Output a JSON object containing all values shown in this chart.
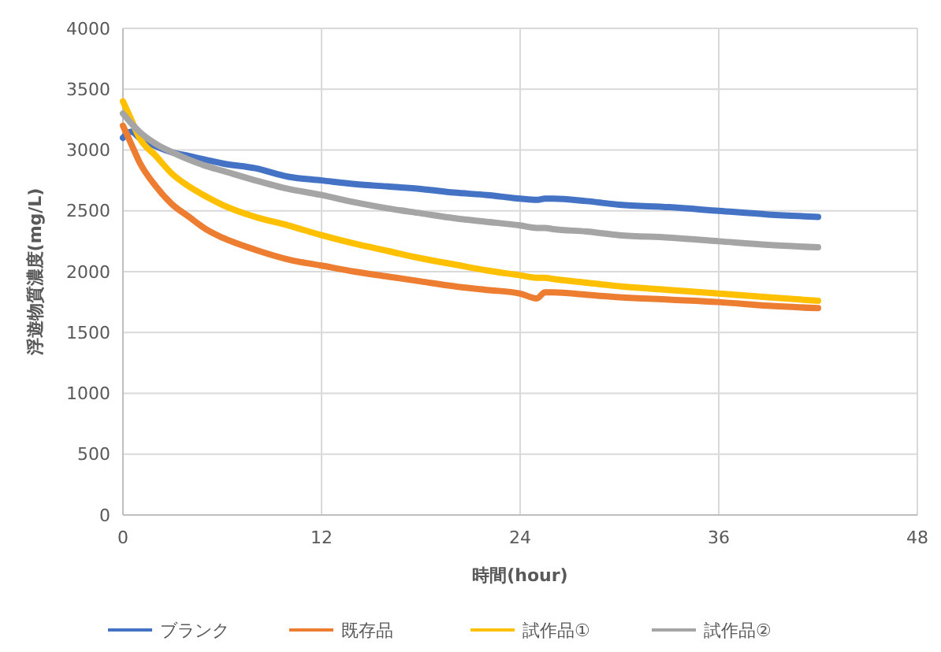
{
  "chart_data": {
    "type": "line",
    "xlabel": "時間(hour)",
    "ylabel": "浮遊物質濃度(mg/L)",
    "x": [
      0,
      0.5,
      1,
      2,
      3,
      4,
      5,
      6,
      8,
      10,
      12,
      14,
      16,
      18,
      20,
      22,
      24,
      25,
      25.5,
      26,
      28,
      30,
      33,
      36,
      39,
      42
    ],
    "series": [
      {
        "name": "ブランク",
        "color": "#4472c4",
        "values": [
          3100,
          3150,
          3100,
          3030,
          2980,
          2950,
          2920,
          2890,
          2850,
          2780,
          2750,
          2720,
          2700,
          2680,
          2650,
          2630,
          2600,
          2590,
          2600,
          2600,
          2580,
          2550,
          2530,
          2500,
          2470,
          2450
        ]
      },
      {
        "name": "既存品",
        "color": "#ed7d31",
        "values": [
          3200,
          3050,
          2900,
          2700,
          2550,
          2450,
          2350,
          2280,
          2180,
          2100,
          2050,
          2000,
          1960,
          1920,
          1880,
          1850,
          1820,
          1780,
          1830,
          1830,
          1810,
          1790,
          1770,
          1750,
          1720,
          1700
        ]
      },
      {
        "name": "試作品①",
        "color": "#ffc000",
        "values": [
          3400,
          3250,
          3100,
          2950,
          2800,
          2700,
          2620,
          2550,
          2450,
          2380,
          2300,
          2230,
          2170,
          2110,
          2060,
          2010,
          1970,
          1950,
          1950,
          1940,
          1910,
          1880,
          1850,
          1820,
          1790,
          1760
        ]
      },
      {
        "name": "試作品②",
        "color": "#a5a5a5",
        "values": [
          3300,
          3220,
          3150,
          3050,
          2980,
          2920,
          2870,
          2830,
          2750,
          2680,
          2630,
          2570,
          2520,
          2480,
          2440,
          2410,
          2380,
          2360,
          2360,
          2350,
          2330,
          2300,
          2280,
          2250,
          2220,
          2200
        ]
      }
    ],
    "xlim": [
      0,
      48
    ],
    "xticks": [
      0,
      12,
      24,
      36,
      48
    ],
    "ylim": [
      0,
      4000
    ],
    "yticks": [
      0,
      500,
      1000,
      1500,
      2000,
      2500,
      3000,
      3500,
      4000
    ],
    "grid": true,
    "legend": "bottom",
    "line_style": "solid",
    "marker": "none"
  }
}
